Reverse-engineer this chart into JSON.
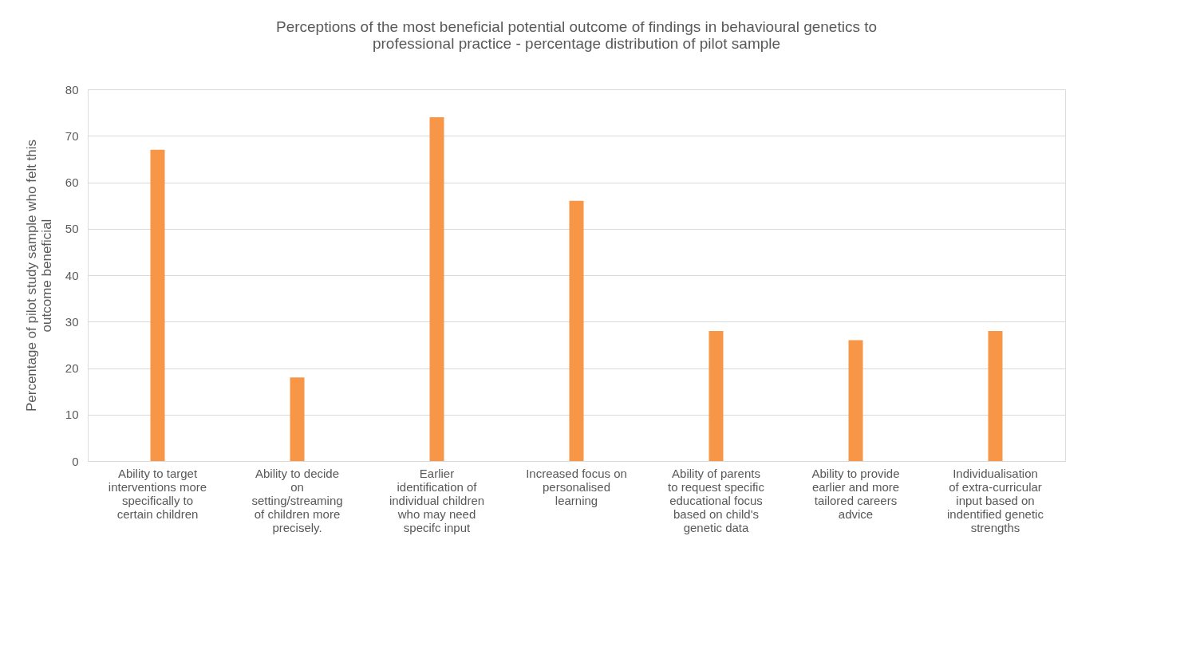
{
  "chart_data": {
    "type": "bar",
    "title": "Perceptions of the most beneficial potential outcome of findings in behavioural genetics to professional practice - percentage distribution of pilot sample",
    "ylabel": "Percentage of pilot study sample who felt this outcome beneficial",
    "categories": [
      "Ability to target interventions more specifically to certain children",
      "Ability to decide on setting/streaming of children more precisely.",
      "Earlier identification of individual children who may need specifc input",
      "Increased focus on personalised learning",
      "Ability of parents to request specific educational focus based on child's genetic data",
      "Ability to provide earlier and more tailored careers advice",
      "Individualisation of extra-curricular input based on indentified genetic strengths"
    ],
    "values": [
      67,
      18,
      74,
      56,
      28,
      26,
      28
    ],
    "color": "#f79646",
    "ylim": [
      0,
      80
    ],
    "yticks": [
      0,
      10,
      20,
      30,
      40,
      50,
      60,
      70,
      80
    ],
    "grid": "y"
  }
}
